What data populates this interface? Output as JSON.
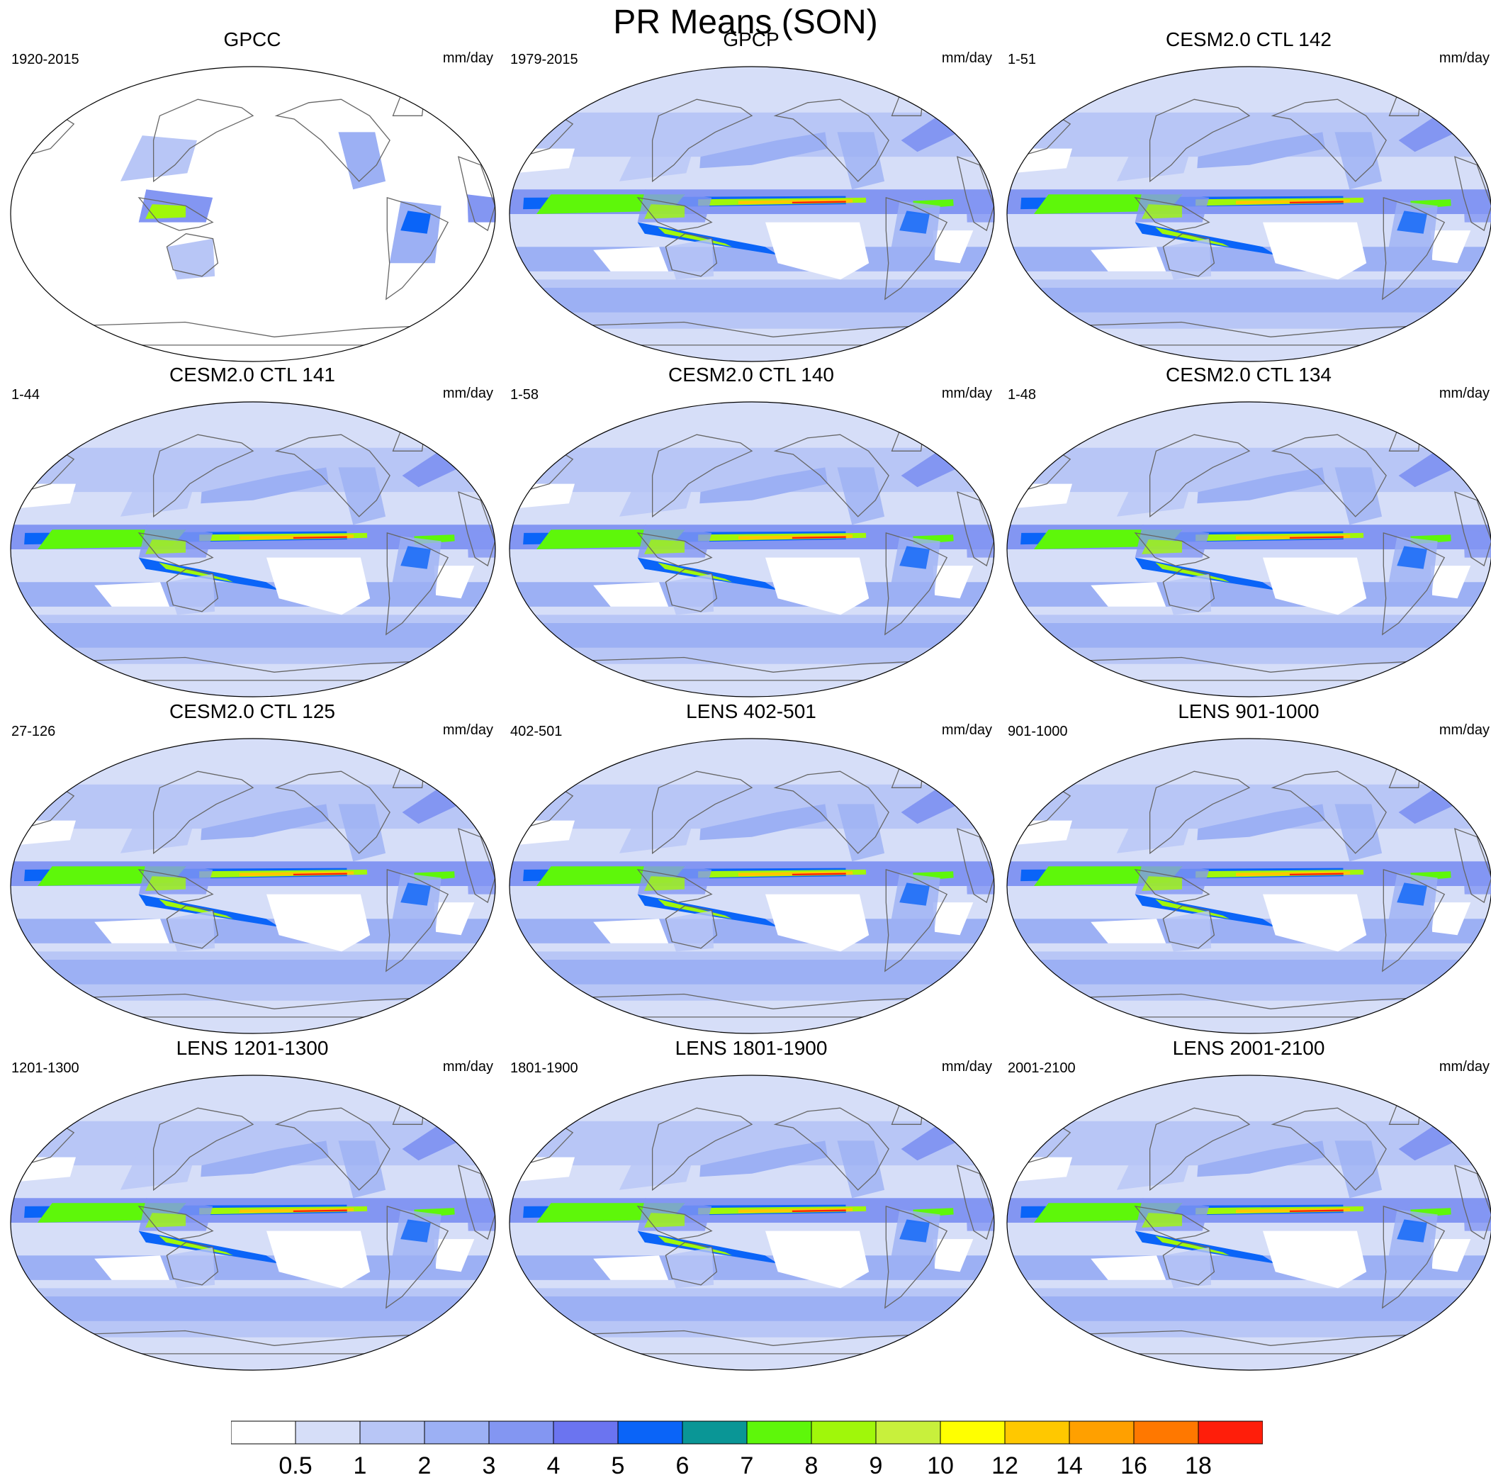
{
  "title": "PR Means (SON)",
  "panels": [
    {
      "title": "GPCC",
      "years": "1920-2015",
      "units": "mm/day",
      "ocean": false
    },
    {
      "title": "GPCP",
      "years": "1979-2015",
      "units": "mm/day",
      "ocean": true
    },
    {
      "title": "CESM2.0 CTL 142",
      "years": "1-51",
      "units": "mm/day",
      "ocean": true
    },
    {
      "title": "CESM2.0 CTL 141",
      "years": "1-44",
      "units": "mm/day",
      "ocean": true
    },
    {
      "title": "CESM2.0 CTL 140",
      "years": "1-58",
      "units": "mm/day",
      "ocean": true
    },
    {
      "title": "CESM2.0 CTL 134",
      "years": "1-48",
      "units": "mm/day",
      "ocean": true
    },
    {
      "title": "CESM2.0 CTL 125",
      "years": "27-126",
      "units": "mm/day",
      "ocean": true
    },
    {
      "title": "LENS 402-501",
      "years": "402-501",
      "units": "mm/day",
      "ocean": true
    },
    {
      "title": "LENS 901-1000",
      "years": "901-1000",
      "units": "mm/day",
      "ocean": true
    },
    {
      "title": "LENS 1201-1300",
      "years": "1201-1300",
      "units": "mm/day",
      "ocean": true
    },
    {
      "title": "LENS 1801-1900",
      "years": "1801-1900",
      "units": "mm/day",
      "ocean": true
    },
    {
      "title": "LENS 2001-2100",
      "years": "2001-2100",
      "units": "mm/day",
      "ocean": true
    }
  ],
  "colorbar": {
    "labels": [
      "0.5",
      "1",
      "2",
      "3",
      "4",
      "5",
      "6",
      "7",
      "8",
      "9",
      "10",
      "12",
      "14",
      "16",
      "18"
    ],
    "colors": [
      "#ffffff",
      "#d6def8",
      "#b8c6f6",
      "#9cb0f4",
      "#8396f2",
      "#6b74f0",
      "#0a64f8",
      "#0a9696",
      "#5ef70a",
      "#a0f70a",
      "#c8f03c",
      "#ffff00",
      "#ffc800",
      "#ffa000",
      "#ff7800",
      "#ff1e0a"
    ]
  }
}
